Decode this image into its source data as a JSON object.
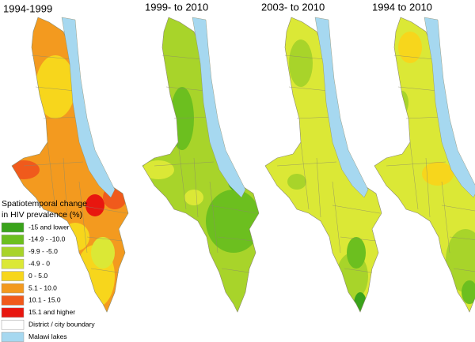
{
  "panels": [
    {
      "title": "1994-1999"
    },
    {
      "title": "1999- to 2010"
    },
    {
      "title": "2003- to 2010"
    },
    {
      "title": "1994 to 2010"
    }
  ],
  "legend": {
    "title_lines": [
      "Spatiotemporal change",
      "in HIV prevalence (%)"
    ],
    "items": [
      {
        "label": "-15 and lower",
        "color": "#3aa31b"
      },
      {
        "label": "-14.9 - -10.0",
        "color": "#6cbf1f"
      },
      {
        "label": "-9.9 - -5.0",
        "color": "#a8d42a"
      },
      {
        "label": "-4.9 - 0",
        "color": "#dbe836"
      },
      {
        "label": "0 - 5.0",
        "color": "#f7d61c"
      },
      {
        "label": "5.1 - 10.0",
        "color": "#f39a1f"
      },
      {
        "label": "10.1 - 15.0",
        "color": "#f05a1c"
      },
      {
        "label": "15.1 and higher",
        "color": "#e8160f"
      },
      {
        "label": "District / city boundary",
        "color": "#ffffff"
      },
      {
        "label": "Malawi lakes",
        "color": "#a6d8f0"
      }
    ]
  }
}
